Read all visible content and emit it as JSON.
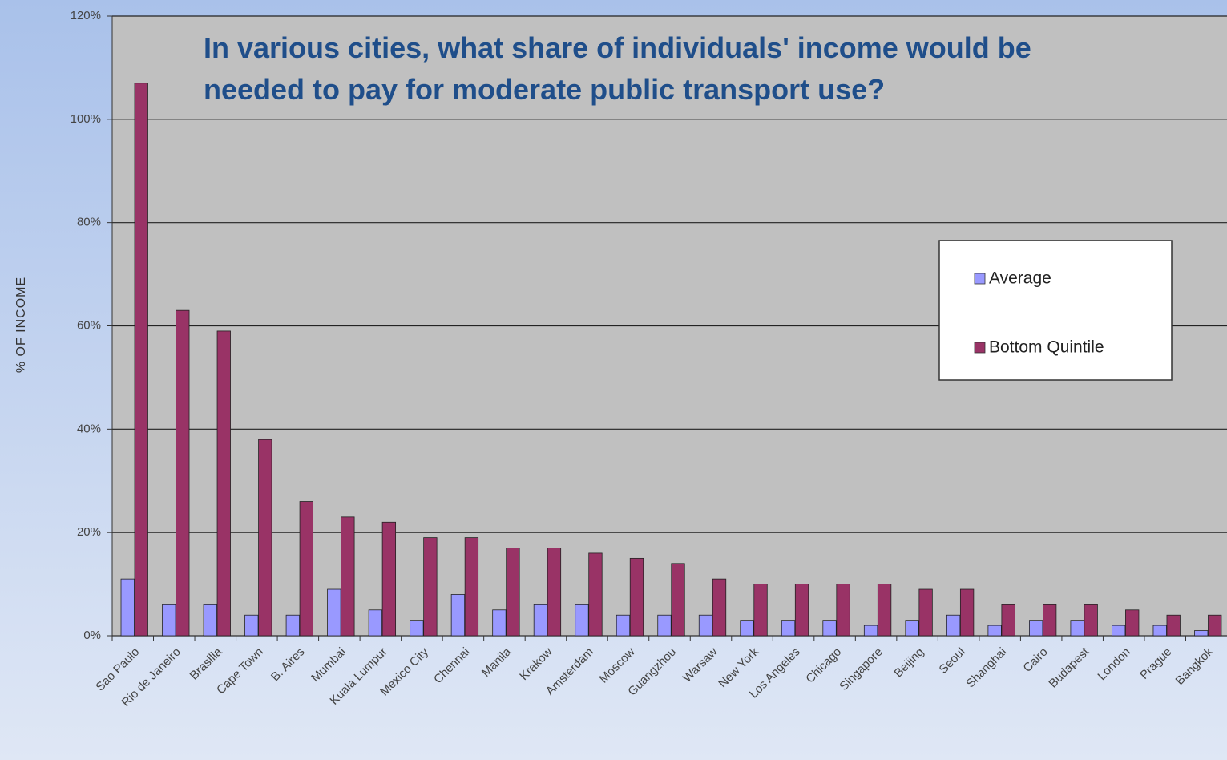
{
  "chart_data": {
    "type": "bar",
    "title": "In various cities, what share of individuals' income would be needed to pay for moderate public transport use?",
    "ylabel": "% OF INCOME",
    "categories": [
      "Sao Paulo",
      "Rio de Janeiro",
      "Brasilia",
      "Cape Town",
      "B. Aires",
      "Mumbai",
      "Kuala Lumpur",
      "Mexico City",
      "Chennai",
      "Manila",
      "Krakow",
      "Amsterdam",
      "Moscow",
      "Guangzhou",
      "Warsaw",
      "New York",
      "Los Angeles",
      "Chicago",
      "Singapore",
      "Beijing",
      "Seoul",
      "Shanghai",
      "Cairo",
      "Budapest",
      "London",
      "Prague",
      "Bangkok"
    ],
    "series": [
      {
        "name": "Average",
        "color": "#9999ff",
        "values": [
          11,
          6,
          6,
          4,
          4,
          9,
          5,
          3,
          8,
          5,
          6,
          6,
          4,
          4,
          4,
          3,
          3,
          3,
          2,
          3,
          4,
          2,
          3,
          3,
          2,
          2,
          1
        ]
      },
      {
        "name": "Bottom Quintile",
        "color": "#993366",
        "values": [
          107,
          63,
          59,
          38,
          26,
          23,
          22,
          19,
          19,
          17,
          17,
          16,
          15,
          14,
          11,
          10,
          10,
          10,
          10,
          9,
          9,
          6,
          6,
          6,
          5,
          4,
          4
        ]
      }
    ],
    "ylim": [
      0,
      120
    ],
    "yticks": [
      {
        "value": 0,
        "label": "0%"
      },
      {
        "value": 20,
        "label": "20%"
      },
      {
        "value": 40,
        "label": "40%"
      },
      {
        "value": 60,
        "label": "60%"
      },
      {
        "value": 80,
        "label": "80%"
      },
      {
        "value": 100,
        "label": "100%"
      },
      {
        "value": 120,
        "label": "120%"
      }
    ],
    "grid": true,
    "legend": "right"
  }
}
